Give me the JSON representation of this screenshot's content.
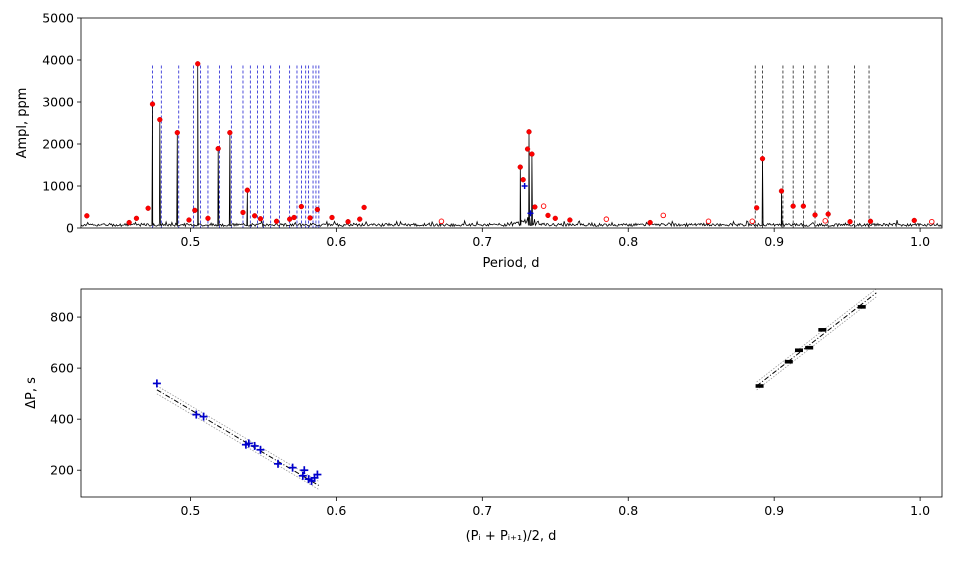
{
  "chart_data": [
    {
      "type": "line",
      "xlabel": "Period, d",
      "ylabel": "Ampl, ppm",
      "xlim": [
        0.425,
        1.015
      ],
      "ylim": [
        0,
        5000
      ],
      "xticks": [
        "0.5",
        "0.6",
        "0.7",
        "0.8",
        "0.9",
        "1.0"
      ],
      "yticks": [
        "0",
        "1000",
        "2000",
        "3000",
        "4000",
        "5000"
      ],
      "grid": false,
      "series": [
        {
          "style": "black-line",
          "points": [
            [
              0.474,
              2950
            ],
            [
              0.479,
              2580
            ],
            [
              0.491,
              2270
            ],
            [
              0.505,
              3910
            ],
            [
              0.519,
              1890
            ],
            [
              0.527,
              2270
            ],
            [
              0.539,
              900
            ],
            [
              0.726,
              1450
            ],
            [
              0.732,
              2290
            ],
            [
              0.734,
              1760
            ],
            [
              0.892,
              1650
            ],
            [
              0.905,
              880
            ]
          ]
        },
        {
          "style": "red-dots",
          "points": [
            [
              0.429,
              290
            ],
            [
              0.458,
              130
            ],
            [
              0.463,
              230
            ],
            [
              0.471,
              470
            ],
            [
              0.474,
              2950
            ],
            [
              0.479,
              2580
            ],
            [
              0.491,
              2270
            ],
            [
              0.499,
              190
            ],
            [
              0.503,
              420
            ],
            [
              0.505,
              3910
            ],
            [
              0.512,
              230
            ],
            [
              0.519,
              1890
            ],
            [
              0.527,
              2270
            ],
            [
              0.536,
              370
            ],
            [
              0.539,
              900
            ],
            [
              0.544,
              290
            ],
            [
              0.548,
              220
            ],
            [
              0.559,
              160
            ],
            [
              0.568,
              210
            ],
            [
              0.571,
              250
            ],
            [
              0.576,
              510
            ],
            [
              0.582,
              240
            ],
            [
              0.587,
              440
            ],
            [
              0.597,
              250
            ],
            [
              0.608,
              150
            ],
            [
              0.616,
              210
            ],
            [
              0.619,
              490
            ],
            [
              0.726,
              1450
            ],
            [
              0.728,
              1150
            ],
            [
              0.731,
              1880
            ],
            [
              0.732,
              2290
            ],
            [
              0.734,
              1760
            ],
            [
              0.736,
              500
            ],
            [
              0.745,
              300
            ],
            [
              0.75,
              230
            ],
            [
              0.76,
              190
            ],
            [
              0.815,
              130
            ],
            [
              0.888,
              480
            ],
            [
              0.892,
              1650
            ],
            [
              0.905,
              880
            ],
            [
              0.913,
              520
            ],
            [
              0.92,
              520
            ],
            [
              0.928,
              310
            ],
            [
              0.937,
              330
            ],
            [
              0.952,
              150
            ],
            [
              0.966,
              160
            ],
            [
              0.996,
              180
            ]
          ]
        },
        {
          "style": "red-open-circles",
          "points": [
            [
              0.672,
              160
            ],
            [
              0.742,
              520
            ],
            [
              0.785,
              210
            ],
            [
              0.824,
              300
            ],
            [
              0.855,
              160
            ],
            [
              0.885,
              160
            ],
            [
              0.935,
              170
            ],
            [
              1.008,
              150
            ]
          ]
        },
        {
          "style": "blue-markers",
          "points": [
            [
              0.729,
              1000
            ],
            [
              0.733,
              350
            ]
          ]
        }
      ],
      "vlines_blue": [
        0.474,
        0.48,
        0.492,
        0.502,
        0.507,
        0.512,
        0.52,
        0.528,
        0.536,
        0.541,
        0.546,
        0.55,
        0.555,
        0.561,
        0.568,
        0.573,
        0.576,
        0.579,
        0.581,
        0.584,
        0.586,
        0.588
      ],
      "vlines_black": [
        0.887,
        0.892,
        0.906,
        0.913,
        0.92,
        0.928,
        0.937,
        0.955,
        0.965
      ]
    },
    {
      "type": "scatter",
      "xlabel": "(Pᵢ + Pᵢ₊₁)/2, d",
      "ylabel": "ΔP, s",
      "xlim": [
        0.425,
        1.015
      ],
      "ylim": [
        95,
        910
      ],
      "xticks": [
        "0.5",
        "0.6",
        "0.7",
        "0.8",
        "0.9",
        "1.0"
      ],
      "yticks": [
        "200",
        "400",
        "600",
        "800"
      ],
      "grid": false,
      "series": [
        {
          "marker": "blue-plus",
          "points": [
            [
              0.477,
              540
            ],
            [
              0.504,
              418
            ],
            [
              0.509,
              410
            ],
            [
              0.538,
              300
            ],
            [
              0.54,
              305
            ],
            [
              0.544,
              295
            ],
            [
              0.548,
              280
            ],
            [
              0.56,
              225
            ],
            [
              0.57,
              210
            ],
            [
              0.577,
              178
            ],
            [
              0.578,
              200
            ],
            [
              0.581,
              165
            ],
            [
              0.583,
              158
            ],
            [
              0.585,
              170
            ],
            [
              0.587,
              183
            ]
          ]
        },
        {
          "marker": "black-bar",
          "points": [
            [
              0.89,
              530
            ],
            [
              0.91,
              625
            ],
            [
              0.917,
              670
            ],
            [
              0.924,
              680
            ],
            [
              0.933,
              750
            ],
            [
              0.96,
              840
            ]
          ]
        }
      ],
      "fit_lines": [
        {
          "from": [
            0.477,
            515
          ],
          "to": [
            0.588,
            140
          ]
        },
        {
          "from": [
            0.888,
            530
          ],
          "to": [
            0.97,
            895
          ]
        }
      ]
    }
  ]
}
